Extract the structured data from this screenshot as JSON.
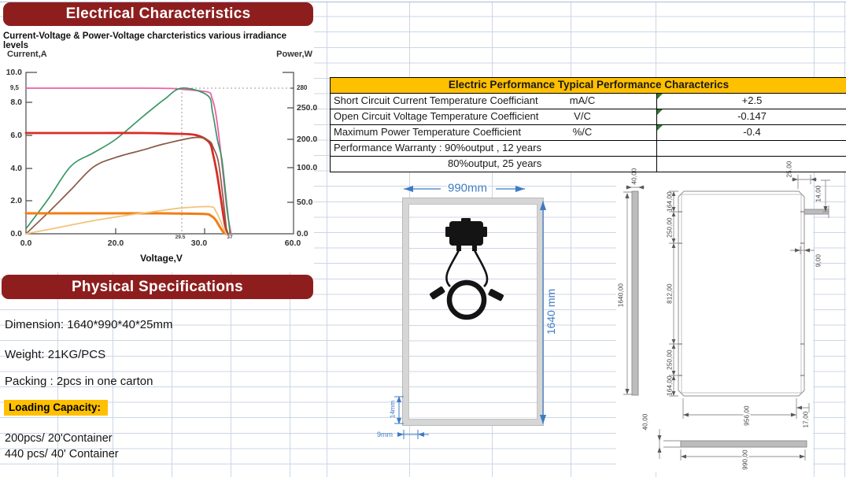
{
  "electrical_section": {
    "title": "Electrical Characteristics"
  },
  "chart_data": {
    "type": "line",
    "title": "Current-Voltage & Power-Voltage charcteristics various irradiance levels",
    "xlabel": "Voltage,V",
    "ylabel_left": "Current,A",
    "ylabel_right": "Power,W",
    "x_ticks": [
      "0.0",
      "20.0",
      "30.0",
      "60.0"
    ],
    "x_minor_ticks": [
      "29.5",
      "37"
    ],
    "y_left_ticks": [
      "10.0",
      "8.0",
      "6.0",
      "4.0",
      "2.0",
      "0.0"
    ],
    "y_left_minor": "9,5",
    "y_right_ticks": [
      "280",
      "250.0",
      "200.0",
      "100.0",
      "50.0",
      "0.0"
    ],
    "xlim": [
      0,
      60
    ],
    "ylim_left": [
      0,
      10
    ],
    "ylim_right": [
      0,
      280
    ],
    "grid": false,
    "legend": "none",
    "marker_point": {
      "voltage": 29.5,
      "power": 280
    },
    "series": [
      {
        "name": "iv-high-irradiance",
        "axis": "current",
        "color": "#ef5fa8",
        "width": 1.8,
        "points": [
          [
            0,
            9.5
          ],
          [
            8,
            9.5
          ],
          [
            16,
            9.5
          ],
          [
            24,
            9.5
          ],
          [
            28,
            9.47
          ],
          [
            29.5,
            9.38
          ],
          [
            30.8,
            9.1
          ],
          [
            32,
            8.5
          ],
          [
            33,
            7.5
          ],
          [
            34,
            5.9
          ],
          [
            35,
            3.9
          ],
          [
            36.3,
            1.5
          ],
          [
            37.5,
            0
          ]
        ]
      },
      {
        "name": "pv-high-irradiance",
        "axis": "power",
        "color": "#389663",
        "width": 1.7,
        "points": [
          [
            0,
            8
          ],
          [
            5,
            55
          ],
          [
            10,
            105
          ],
          [
            15,
            152
          ],
          [
            20,
            200
          ],
          [
            24,
            237
          ],
          [
            27,
            263
          ],
          [
            29.5,
            280
          ],
          [
            30.8,
            269
          ],
          [
            32.2,
            243
          ],
          [
            33.6,
            196
          ],
          [
            34.8,
            130
          ],
          [
            36,
            55
          ],
          [
            37.1,
            0
          ]
        ]
      },
      {
        "name": "iv-mid-irradiance",
        "axis": "current",
        "color": "#d92b26",
        "width": 2.8,
        "points": [
          [
            0,
            6.3
          ],
          [
            8,
            6.3
          ],
          [
            16,
            6.3
          ],
          [
            24,
            6.3
          ],
          [
            28,
            6.22
          ],
          [
            29.8,
            6.05
          ],
          [
            31.2,
            5.6
          ],
          [
            32.4,
            4.8
          ],
          [
            33.5,
            3.6
          ],
          [
            34.6,
            2.0
          ],
          [
            35.6,
            0.7
          ],
          [
            36.4,
            0
          ]
        ]
      },
      {
        "name": "pv-mid-irradiance",
        "axis": "power",
        "color": "#8a5a44",
        "width": 1.7,
        "points": [
          [
            0,
            0
          ],
          [
            5,
            34
          ],
          [
            10,
            68
          ],
          [
            15,
            102
          ],
          [
            20,
            136
          ],
          [
            24,
            163
          ],
          [
            27,
            184
          ],
          [
            29.8,
            203
          ],
          [
            31.2,
            195
          ],
          [
            32.5,
            168
          ],
          [
            33.8,
            122
          ],
          [
            35,
            62
          ],
          [
            36.2,
            0
          ]
        ]
      },
      {
        "name": "iv-low-irradiance",
        "axis": "current",
        "color": "#f07d16",
        "width": 3,
        "points": [
          [
            0,
            1.45
          ],
          [
            8,
            1.45
          ],
          [
            16,
            1.45
          ],
          [
            24,
            1.45
          ],
          [
            28,
            1.44
          ],
          [
            30,
            1.4
          ],
          [
            31.8,
            1.27
          ],
          [
            33,
            1.0
          ],
          [
            34.2,
            0.5
          ],
          [
            35.2,
            0.12
          ],
          [
            35.9,
            0
          ]
        ]
      },
      {
        "name": "pv-low-irradiance",
        "axis": "power",
        "color": "#f2c47c",
        "width": 1.8,
        "points": [
          [
            0,
            0
          ],
          [
            8,
            11
          ],
          [
            16,
            22
          ],
          [
            22,
            30
          ],
          [
            26,
            36
          ],
          [
            29.5,
            41
          ],
          [
            31.5,
            43
          ],
          [
            33,
            37
          ],
          [
            34.3,
            22
          ],
          [
            35.3,
            8
          ],
          [
            36,
            0
          ]
        ]
      }
    ],
    "render_anchors": {
      "x": [
        [
          0,
          33
        ],
        [
          20,
          147
        ],
        [
          29.5,
          231
        ],
        [
          30,
          260
        ],
        [
          37,
          292
        ],
        [
          60,
          373
        ]
      ],
      "current": [
        [
          0,
          297
        ],
        [
          1.45,
          271
        ],
        [
          2,
          255
        ],
        [
          4,
          214
        ],
        [
          6,
          172
        ],
        [
          6.3,
          169
        ],
        [
          8,
          130
        ],
        [
          9.5,
          112
        ],
        [
          10,
          88
        ]
      ],
      "power": [
        [
          0,
          297
        ],
        [
          50,
          257
        ],
        [
          100,
          213
        ],
        [
          200,
          177
        ],
        [
          250,
          137
        ],
        [
          280,
          112
        ]
      ]
    }
  },
  "perf_table": {
    "title": "Electric Performance Typical Performance Characterics",
    "rows": [
      {
        "label": "Short Circuit Current Temperature Coefficiant",
        "unit": "mA/C",
        "value": "+2.5"
      },
      {
        "label": "Open Circuit Voltage Temperature Coefficient",
        "unit": "V/C",
        "value": "-0.147"
      },
      {
        "label": "Maximum Power Temperature Coefficient",
        "unit": "%/C",
        "value": "-0.4"
      }
    ],
    "warranty_line1": "Performance Warranty :  90%output ,  12 years",
    "warranty_line2": "80%output,   25 years"
  },
  "panel_diagram": {
    "width_label": "990mm",
    "height_label": "1640 mm",
    "frame_label": "14mm",
    "inset_label": "9mm"
  },
  "cad": {
    "side_thickness": "40,00",
    "side_length": "1640,00",
    "seg_top": "164,00",
    "seg_upper": "250,00",
    "seg_mid": "812,00",
    "seg_lower": "250,00",
    "seg_bottom": "164,00",
    "corner_width": "25,00",
    "corner_offset": "14,00",
    "corner_hole": "9,00",
    "bottom_width": "956,00",
    "corner_inset": "17,00",
    "bar_length": "990,00",
    "bar_thickness": "40,00"
  },
  "physical_section": {
    "title": "Physical Specifications",
    "dimension": "Dimension:  1640*990*40*25mm",
    "weight": "Weight: 21KG/PCS",
    "packing": "Packing : 2pcs in one carton",
    "loading_label": "Loading Capacity:",
    "capacity_20": "200pcs/ 20'Container",
    "capacity_40": "440 pcs/ 40' Container"
  },
  "colors": {
    "banner_red": "#8E1E1E",
    "gold": "#FFC000",
    "dim_blue": "#3E7BC4"
  }
}
